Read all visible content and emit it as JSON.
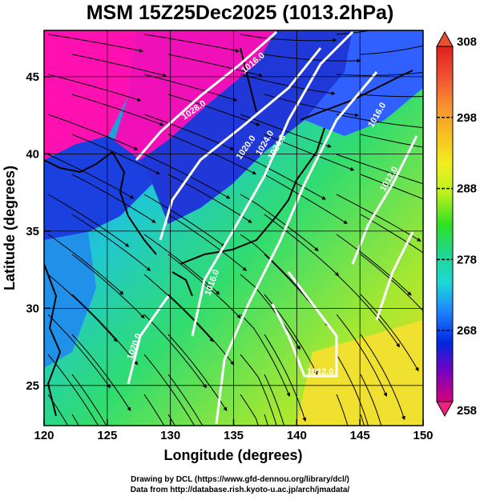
{
  "title": "MSM 15Z25Dec2025 (1013.2hPa)",
  "map": {
    "xlabel": "Longitude (degrees)",
    "ylabel": "Latitude  (degrees)",
    "lon_range": [
      120,
      150
    ],
    "lat_range": [
      22.4,
      48
    ],
    "lon_ticks": [
      "120",
      "125",
      "130",
      "135",
      "140",
      "145",
      "150"
    ],
    "lat_ticks": [
      "25",
      "30",
      "35",
      "40",
      "45"
    ],
    "lon_values": [
      120,
      125,
      130,
      135,
      140,
      145,
      150
    ],
    "lat_values": [
      25,
      30,
      35,
      40,
      45
    ],
    "grid": true,
    "colors": {
      "cold": "#ff00aa",
      "cool": "#1a3ae0",
      "mid": "#22d890",
      "warm": "#f0e020",
      "streamline": "#000000",
      "isobar": "#ffffff"
    },
    "isobar_labels": [
      "1028.0",
      "1016.0",
      "1020.0",
      "1024.0",
      "1024.0",
      "1016.0",
      "1012.0",
      "1020.0",
      "1016.0",
      "1012.0"
    ]
  },
  "colorbar": {
    "tick_labels": [
      "308",
      "298",
      "288",
      "278",
      "268",
      "258"
    ],
    "tick_values": [
      308,
      298,
      288,
      278,
      268,
      258
    ],
    "range": [
      258,
      308
    ],
    "colors": [
      "#d6007a",
      "#7a00c0",
      "#0028e0",
      "#1e80ff",
      "#1ed8d8",
      "#20d890",
      "#30e020",
      "#b8f020",
      "#f0f020",
      "#f8c020",
      "#f89030",
      "#f05030",
      "#e02020"
    ]
  },
  "credits": {
    "line1": "Drawing by DCL (https://www.gfd-dennou.org/library/dcl/)",
    "line2": "Data from http://database.rish.kyoto-u.ac.jp/arch/jmadata/"
  }
}
